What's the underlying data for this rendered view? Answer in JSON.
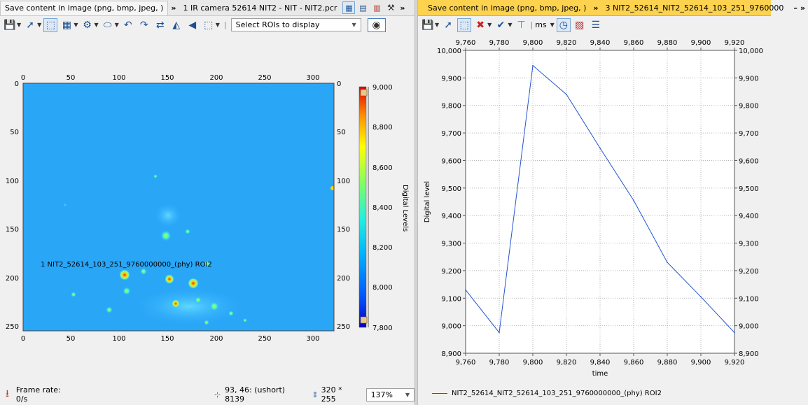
{
  "left": {
    "tabs": [
      {
        "label": "Save content in image (png, bmp, jpeg, )"
      },
      {
        "label": "1 IR camera 52614 NIT2 - NIT - NIT2.pcr"
      }
    ],
    "overflow": "»",
    "roi_select": {
      "label": "Select ROIs to display"
    },
    "image": {
      "roi_label": "1 NIT2_52614_103_251_9760000000_(phy) ROI2",
      "x_ticks": [
        "0",
        "50",
        "100",
        "150",
        "200",
        "250",
        "300"
      ],
      "y_ticks": [
        "0",
        "50",
        "100",
        "150",
        "200",
        "250"
      ],
      "colorbar": {
        "label": "Digital Levels",
        "ticks": [
          "9,000",
          "8,800",
          "8,600",
          "8,400",
          "8,200",
          "8,000",
          "7,800"
        ]
      }
    },
    "status": {
      "frame_rate": "Frame rate: 0/s",
      "pixel_value": "93, 46: (ushort) 8139",
      "dimensions": "320 * 255",
      "zoom": "137%"
    }
  },
  "right": {
    "tabs": [
      {
        "label": "Save content in image (png, bmp, jpeg, )"
      },
      {
        "label": "3 NIT2_52614_NIT2_52614_103_251_9760000"
      }
    ],
    "overflow": "»",
    "unit": "ms"
  },
  "chart_data": {
    "type": "line",
    "xlabel": "time",
    "ylabel": "Digital level",
    "xlim": [
      9760,
      9920
    ],
    "ylim": [
      8900,
      10000
    ],
    "x_ticks": [
      "9,760",
      "9,780",
      "9,800",
      "9,820",
      "9,840",
      "9,860",
      "9,880",
      "9,900",
      "9,920"
    ],
    "y_ticks": [
      "10,000",
      "9,900",
      "9,800",
      "9,700",
      "9,600",
      "9,500",
      "9,400",
      "9,300",
      "9,200",
      "9,100",
      "9,000",
      "8,900"
    ],
    "grid": true,
    "legend": "bottom",
    "series": [
      {
        "name": "NIT2_52614_NIT2_52614_103_251_9760000000_(phy) ROI2",
        "color": "#2255cc",
        "x": [
          9760,
          9780,
          9800,
          9820,
          9840,
          9860,
          9880,
          9900,
          9920
        ],
        "y": [
          9130,
          8975,
          9945,
          9840,
          9645,
          9455,
          9230,
          9105,
          8975
        ]
      }
    ]
  }
}
